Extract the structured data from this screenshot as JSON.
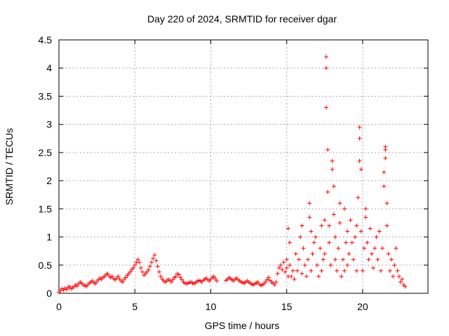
{
  "chart_data": {
    "type": "scatter",
    "title": "Day 220 of 2024, SRMTID for receiver dgar",
    "xlabel": "GPS time / hours",
    "ylabel": "SRMTID / TECUs",
    "xlim": [
      0,
      24.3
    ],
    "ylim": [
      0,
      4.5
    ],
    "grid": true,
    "marker": "+",
    "color": "#ff0000",
    "x_ticks": [
      {
        "value": 0,
        "label": "0"
      },
      {
        "value": 5,
        "label": "5"
      },
      {
        "value": 10,
        "label": "10"
      },
      {
        "value": 15,
        "label": "15"
      },
      {
        "value": 20,
        "label": "20"
      }
    ],
    "y_ticks": [
      {
        "value": 0,
        "label": "0"
      },
      {
        "value": 0.5,
        "label": "0.5"
      },
      {
        "value": 1,
        "label": "1"
      },
      {
        "value": 1.5,
        "label": "1.5"
      },
      {
        "value": 2,
        "label": "2"
      },
      {
        "value": 2.5,
        "label": "2.5"
      },
      {
        "value": 3,
        "label": "3"
      },
      {
        "value": 3.5,
        "label": "3.5"
      },
      {
        "value": 4,
        "label": "4"
      },
      {
        "value": 4.5,
        "label": "4.5"
      }
    ],
    "series": [
      {
        "name": "SRMTID",
        "points": [
          [
            0.0,
            0.02
          ],
          [
            0.1,
            0.05
          ],
          [
            0.2,
            0.08
          ],
          [
            0.3,
            0.06
          ],
          [
            0.4,
            0.09
          ],
          [
            0.5,
            0.07
          ],
          [
            0.6,
            0.1
          ],
          [
            0.7,
            0.12
          ],
          [
            0.8,
            0.08
          ],
          [
            0.9,
            0.1
          ],
          [
            1.0,
            0.12
          ],
          [
            1.1,
            0.15
          ],
          [
            1.2,
            0.13
          ],
          [
            1.3,
            0.17
          ],
          [
            1.4,
            0.2
          ],
          [
            1.5,
            0.18
          ],
          [
            1.6,
            0.15
          ],
          [
            1.7,
            0.14
          ],
          [
            1.8,
            0.12
          ],
          [
            1.9,
            0.15
          ],
          [
            2.0,
            0.18
          ],
          [
            2.1,
            0.2
          ],
          [
            2.2,
            0.22
          ],
          [
            2.3,
            0.19
          ],
          [
            2.4,
            0.17
          ],
          [
            2.5,
            0.21
          ],
          [
            2.6,
            0.24
          ],
          [
            2.7,
            0.27
          ],
          [
            2.8,
            0.25
          ],
          [
            2.9,
            0.28
          ],
          [
            3.0,
            0.3
          ],
          [
            3.1,
            0.33
          ],
          [
            3.2,
            0.35
          ],
          [
            3.3,
            0.31
          ],
          [
            3.4,
            0.28
          ],
          [
            3.5,
            0.3
          ],
          [
            3.6,
            0.26
          ],
          [
            3.7,
            0.24
          ],
          [
            3.8,
            0.27
          ],
          [
            3.9,
            0.3
          ],
          [
            4.0,
            0.25
          ],
          [
            4.1,
            0.22
          ],
          [
            4.2,
            0.2
          ],
          [
            4.3,
            0.25
          ],
          [
            4.4,
            0.28
          ],
          [
            4.5,
            0.32
          ],
          [
            4.6,
            0.35
          ],
          [
            4.7,
            0.38
          ],
          [
            4.8,
            0.42
          ],
          [
            4.9,
            0.45
          ],
          [
            5.0,
            0.5
          ],
          [
            5.1,
            0.55
          ],
          [
            5.2,
            0.6
          ],
          [
            5.3,
            0.55
          ],
          [
            5.4,
            0.45
          ],
          [
            5.5,
            0.38
          ],
          [
            5.6,
            0.32
          ],
          [
            5.7,
            0.35
          ],
          [
            5.8,
            0.38
          ],
          [
            5.9,
            0.42
          ],
          [
            6.0,
            0.48
          ],
          [
            6.1,
            0.55
          ],
          [
            6.2,
            0.62
          ],
          [
            6.3,
            0.68
          ],
          [
            6.4,
            0.58
          ],
          [
            6.5,
            0.48
          ],
          [
            6.6,
            0.38
          ],
          [
            6.7,
            0.3
          ],
          [
            6.8,
            0.25
          ],
          [
            6.9,
            0.22
          ],
          [
            7.0,
            0.2
          ],
          [
            7.1,
            0.22
          ],
          [
            7.2,
            0.25
          ],
          [
            7.3,
            0.23
          ],
          [
            7.4,
            0.2
          ],
          [
            7.5,
            0.24
          ],
          [
            7.6,
            0.28
          ],
          [
            7.7,
            0.3
          ],
          [
            7.8,
            0.35
          ],
          [
            7.9,
            0.33
          ],
          [
            8.0,
            0.28
          ],
          [
            8.1,
            0.24
          ],
          [
            8.2,
            0.2
          ],
          [
            8.3,
            0.18
          ],
          [
            8.4,
            0.17
          ],
          [
            8.5,
            0.18
          ],
          [
            8.6,
            0.19
          ],
          [
            8.7,
            0.2
          ],
          [
            8.8,
            0.18
          ],
          [
            8.9,
            0.17
          ],
          [
            9.0,
            0.19
          ],
          [
            9.1,
            0.21
          ],
          [
            9.2,
            0.23
          ],
          [
            9.3,
            0.22
          ],
          [
            9.4,
            0.2
          ],
          [
            9.5,
            0.23
          ],
          [
            9.6,
            0.25
          ],
          [
            9.7,
            0.27
          ],
          [
            9.8,
            0.24
          ],
          [
            9.9,
            0.22
          ],
          [
            10.0,
            0.25
          ],
          [
            10.1,
            0.28
          ],
          [
            10.2,
            0.3
          ],
          [
            10.3,
            0.26
          ],
          [
            10.4,
            0.22
          ],
          [
            11.0,
            0.23
          ],
          [
            11.1,
            0.25
          ],
          [
            11.2,
            0.28
          ],
          [
            11.3,
            0.26
          ],
          [
            11.4,
            0.24
          ],
          [
            11.5,
            0.22
          ],
          [
            11.6,
            0.25
          ],
          [
            11.7,
            0.27
          ],
          [
            11.8,
            0.24
          ],
          [
            11.9,
            0.22
          ],
          [
            12.0,
            0.2
          ],
          [
            12.1,
            0.19
          ],
          [
            12.2,
            0.18
          ],
          [
            12.3,
            0.2
          ],
          [
            12.4,
            0.22
          ],
          [
            12.5,
            0.2
          ],
          [
            12.6,
            0.18
          ],
          [
            12.7,
            0.16
          ],
          [
            12.8,
            0.15
          ],
          [
            12.9,
            0.17
          ],
          [
            13.0,
            0.18
          ],
          [
            13.1,
            0.2
          ],
          [
            13.2,
            0.16
          ],
          [
            13.3,
            0.14
          ],
          [
            13.4,
            0.15
          ],
          [
            13.5,
            0.17
          ],
          [
            13.6,
            0.2
          ],
          [
            13.7,
            0.24
          ],
          [
            13.8,
            0.28
          ],
          [
            13.9,
            0.23
          ],
          [
            14.0,
            0.2
          ],
          [
            14.1,
            0.18
          ],
          [
            14.2,
            0.15
          ],
          [
            14.3,
            0.2
          ],
          [
            14.4,
            0.35
          ],
          [
            14.5,
            0.45
          ],
          [
            14.6,
            0.5
          ],
          [
            14.7,
            0.42
          ],
          [
            14.8,
            0.55
          ],
          [
            14.9,
            0.38
          ],
          [
            15.0,
            0.6
          ],
          [
            15.0,
            0.45
          ],
          [
            15.1,
            0.3
          ],
          [
            15.1,
            1.15
          ],
          [
            15.2,
            0.9
          ],
          [
            15.2,
            0.5
          ],
          [
            15.3,
            0.3
          ],
          [
            15.4,
            0.4
          ],
          [
            15.5,
            0.25
          ],
          [
            15.6,
            0.7
          ],
          [
            15.7,
            0.4
          ],
          [
            15.8,
            0.6
          ],
          [
            15.9,
            1.0
          ],
          [
            16.0,
            1.2
          ],
          [
            16.0,
            0.35
          ],
          [
            16.1,
            0.8
          ],
          [
            16.2,
            0.5
          ],
          [
            16.3,
            0.3
          ],
          [
            16.4,
            0.6
          ],
          [
            16.5,
            1.35
          ],
          [
            16.5,
            1.6
          ],
          [
            16.6,
            1.1
          ],
          [
            16.6,
            0.4
          ],
          [
            16.7,
            0.7
          ],
          [
            16.8,
            0.9
          ],
          [
            16.9,
            1.0
          ],
          [
            17.0,
            0.5
          ],
          [
            17.1,
            0.3
          ],
          [
            17.2,
            0.8
          ],
          [
            17.3,
            1.2
          ],
          [
            17.3,
            0.4
          ],
          [
            17.4,
            0.6
          ],
          [
            17.5,
            1.3
          ],
          [
            17.5,
            0.7
          ],
          [
            17.6,
            4.2
          ],
          [
            17.6,
            4.0
          ],
          [
            17.6,
            3.3
          ],
          [
            17.7,
            2.55
          ],
          [
            17.7,
            1.8
          ],
          [
            17.8,
            1.2
          ],
          [
            17.8,
            0.9
          ],
          [
            17.9,
            0.5
          ],
          [
            18.0,
            2.35
          ],
          [
            18.0,
            2.2
          ],
          [
            18.1,
            1.9
          ],
          [
            18.1,
            1.4
          ],
          [
            18.2,
            0.6
          ],
          [
            18.2,
            1.0
          ],
          [
            18.3,
            0.4
          ],
          [
            18.4,
            0.8
          ],
          [
            18.5,
            1.6
          ],
          [
            18.5,
            1.25
          ],
          [
            18.6,
            0.3
          ],
          [
            18.7,
            0.6
          ],
          [
            18.8,
            1.5
          ],
          [
            18.8,
            0.4
          ],
          [
            18.9,
            0.9
          ],
          [
            19.0,
            1.1
          ],
          [
            19.0,
            0.5
          ],
          [
            19.1,
            0.7
          ],
          [
            19.2,
            1.3
          ],
          [
            19.3,
            0.9
          ],
          [
            19.4,
            0.6
          ],
          [
            19.5,
            1.0
          ],
          [
            19.6,
            1.2
          ],
          [
            19.6,
            0.4
          ],
          [
            19.7,
            1.7
          ],
          [
            19.8,
            2.95
          ],
          [
            19.8,
            2.75
          ],
          [
            19.8,
            2.35
          ],
          [
            19.9,
            2.2
          ],
          [
            19.9,
            1.1
          ],
          [
            20.0,
            0.4
          ],
          [
            20.1,
            0.8
          ],
          [
            20.2,
            1.35
          ],
          [
            20.2,
            1.5
          ],
          [
            20.3,
            0.9
          ],
          [
            20.4,
            0.6
          ],
          [
            20.5,
            1.15
          ],
          [
            20.6,
            0.7
          ],
          [
            20.7,
            0.45
          ],
          [
            20.8,
            0.8
          ],
          [
            20.9,
            1.0
          ],
          [
            21.0,
            0.6
          ],
          [
            21.1,
            1.1
          ],
          [
            21.2,
            0.4
          ],
          [
            21.3,
            0.8
          ],
          [
            21.4,
            2.15
          ],
          [
            21.4,
            1.9
          ],
          [
            21.5,
            2.6
          ],
          [
            21.5,
            2.55
          ],
          [
            21.5,
            2.4
          ],
          [
            21.6,
            1.6
          ],
          [
            21.6,
            1.2
          ],
          [
            21.7,
            0.7
          ],
          [
            21.8,
            0.4
          ],
          [
            21.9,
            0.6
          ],
          [
            22.0,
            0.3
          ],
          [
            22.1,
            0.5
          ],
          [
            22.2,
            0.8
          ],
          [
            22.3,
            0.4
          ],
          [
            22.4,
            0.3
          ],
          [
            22.5,
            0.2
          ],
          [
            22.6,
            0.25
          ],
          [
            22.7,
            0.15
          ],
          [
            22.8,
            0.12
          ]
        ]
      }
    ]
  }
}
